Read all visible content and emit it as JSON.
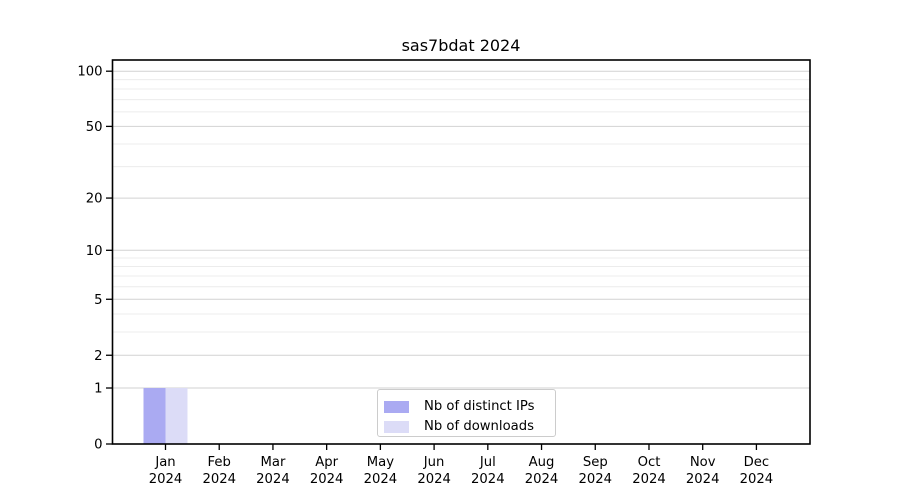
{
  "chart": {
    "title": "sas7bdat 2024"
  },
  "chart_data": {
    "type": "bar",
    "title": "sas7bdat 2024",
    "categories": [
      "Jan",
      "Feb",
      "Mar",
      "Apr",
      "May",
      "Jun",
      "Jul",
      "Aug",
      "Sep",
      "Oct",
      "Nov",
      "Dec"
    ],
    "x_tick_year": "2024",
    "series": [
      {
        "name": "Nb of distinct IPs",
        "color": "#aaaaf2",
        "values": [
          1,
          0,
          0,
          0,
          0,
          0,
          0,
          0,
          0,
          0,
          0,
          0
        ]
      },
      {
        "name": "Nb of downloads",
        "color": "#dcdcf7",
        "values": [
          1,
          0,
          0,
          0,
          0,
          0,
          0,
          0,
          0,
          0,
          0,
          0
        ]
      }
    ],
    "yscale": "log1p",
    "ylim": [
      0,
      115
    ],
    "y_major_ticks": [
      0,
      1,
      2,
      5,
      10,
      20,
      50,
      100
    ],
    "y_minor_gridlines": [
      3,
      4,
      6,
      7,
      8,
      9,
      30,
      40,
      60,
      70,
      80,
      90
    ],
    "grid": true,
    "legend_position": "lower center",
    "colors": {
      "spine": "#000000",
      "grid_major": "#d2d2d2",
      "grid_minor": "#ececec",
      "text": "#000000"
    }
  }
}
